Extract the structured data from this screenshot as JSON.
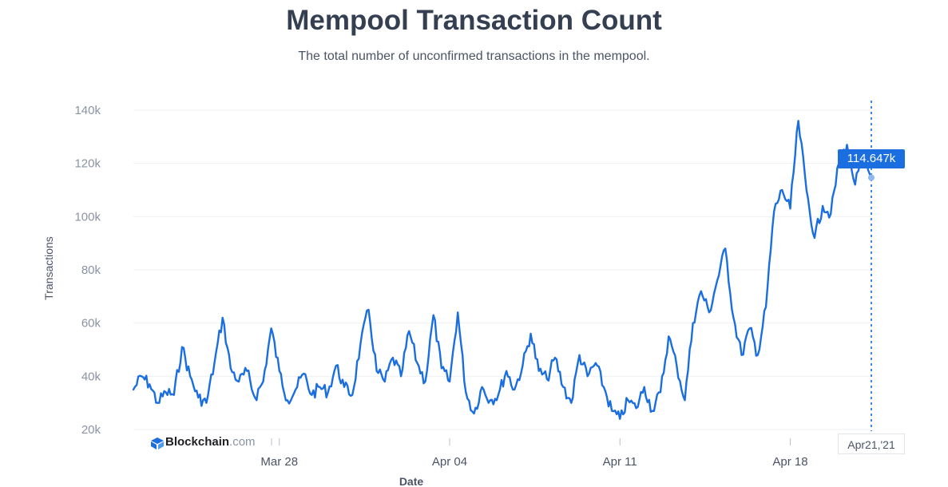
{
  "title": "Mempool Transaction Count",
  "subtitle": "The total number of unconfirmed transactions in the mempool.",
  "brand": {
    "name_bold": "Blockchain",
    "name_suffix": ".com"
  },
  "tooltip": {
    "value": "114.647k",
    "date": "Apr21,'21"
  },
  "colors": {
    "line": "#1a6ee0",
    "grid": "#eef0f3",
    "text": "#353f52"
  },
  "icons": [
    "blockchain-logo-icon"
  ],
  "chart_data": {
    "type": "line",
    "title": "Mempool Transaction Count",
    "xlabel": "Date",
    "ylabel": "Transactions",
    "x_start": "2021-03-22",
    "x_end": "2021-04-21",
    "x_ticks": [
      {
        "label": "Mar 28",
        "date": "2021-03-28"
      },
      {
        "label": "Apr 04",
        "date": "2021-04-04"
      },
      {
        "label": "Apr 11",
        "date": "2021-04-11"
      },
      {
        "label": "Apr 18",
        "date": "2021-04-18"
      }
    ],
    "ylim": [
      20000,
      140000
    ],
    "y_ticks": [
      {
        "value": 20000,
        "label": "20k"
      },
      {
        "value": 40000,
        "label": "40k"
      },
      {
        "value": 60000,
        "label": "60k"
      },
      {
        "value": 80000,
        "label": "80k"
      },
      {
        "value": 100000,
        "label": "100k"
      },
      {
        "value": 120000,
        "label": "120k"
      },
      {
        "value": 140000,
        "label": "140k"
      }
    ],
    "grid": true,
    "series": [
      {
        "points": [
          [
            "2021-03-22T00:00",
            35000
          ],
          [
            "2021-03-22T08:00",
            40000
          ],
          [
            "2021-03-22T16:00",
            37000
          ],
          [
            "2021-03-23T00:00",
            30000
          ],
          [
            "2021-03-23T08:00",
            34000
          ],
          [
            "2021-03-23T16:00",
            33000
          ],
          [
            "2021-03-24T00:00",
            51000
          ],
          [
            "2021-03-24T08:00",
            40000
          ],
          [
            "2021-03-24T16:00",
            32000
          ],
          [
            "2021-03-25T00:00",
            30000
          ],
          [
            "2021-03-25T08:00",
            45000
          ],
          [
            "2021-03-25T16:00",
            62000
          ],
          [
            "2021-03-26T00:00",
            43000
          ],
          [
            "2021-03-26T08:00",
            38000
          ],
          [
            "2021-03-26T16:00",
            42000
          ],
          [
            "2021-03-27T00:00",
            32000
          ],
          [
            "2021-03-27T08:00",
            38000
          ],
          [
            "2021-03-27T16:00",
            58000
          ],
          [
            "2021-03-28T00:00",
            42000
          ],
          [
            "2021-03-28T08:00",
            31000
          ],
          [
            "2021-03-28T16:00",
            35000
          ],
          [
            "2021-03-29T00:00",
            41000
          ],
          [
            "2021-03-29T08:00",
            33000
          ],
          [
            "2021-03-29T16:00",
            36000
          ],
          [
            "2021-03-30T00:00",
            34000
          ],
          [
            "2021-03-30T08:00",
            44000
          ],
          [
            "2021-03-30T16:00",
            36000
          ],
          [
            "2021-03-31T00:00",
            33000
          ],
          [
            "2021-03-31T08:00",
            52000
          ],
          [
            "2021-03-31T16:00",
            65000
          ],
          [
            "2021-04-01T00:00",
            42000
          ],
          [
            "2021-04-01T08:00",
            38000
          ],
          [
            "2021-04-01T16:00",
            47000
          ],
          [
            "2021-04-02T00:00",
            40000
          ],
          [
            "2021-04-02T08:00",
            57000
          ],
          [
            "2021-04-02T16:00",
            45000
          ],
          [
            "2021-04-03T00:00",
            38000
          ],
          [
            "2021-04-03T08:00",
            63000
          ],
          [
            "2021-04-03T16:00",
            43000
          ],
          [
            "2021-04-04T00:00",
            38000
          ],
          [
            "2021-04-04T08:00",
            64000
          ],
          [
            "2021-04-04T16:00",
            34000
          ],
          [
            "2021-04-05T00:00",
            26000
          ],
          [
            "2021-04-05T08:00",
            36000
          ],
          [
            "2021-04-05T16:00",
            31000
          ],
          [
            "2021-04-06T00:00",
            33000
          ],
          [
            "2021-04-06T08:00",
            42000
          ],
          [
            "2021-04-06T16:00",
            35000
          ],
          [
            "2021-04-07T00:00",
            44000
          ],
          [
            "2021-04-07T08:00",
            56000
          ],
          [
            "2021-04-07T16:00",
            42000
          ],
          [
            "2021-04-08T00:00",
            39000
          ],
          [
            "2021-04-08T08:00",
            47000
          ],
          [
            "2021-04-08T16:00",
            36000
          ],
          [
            "2021-04-09T00:00",
            30000
          ],
          [
            "2021-04-09T08:00",
            48000
          ],
          [
            "2021-04-09T16:00",
            40000
          ],
          [
            "2021-04-10T00:00",
            45000
          ],
          [
            "2021-04-10T08:00",
            36000
          ],
          [
            "2021-04-10T16:00",
            27000
          ],
          [
            "2021-04-11T00:00",
            24000
          ],
          [
            "2021-04-11T08:00",
            31000
          ],
          [
            "2021-04-11T16:00",
            28000
          ],
          [
            "2021-04-12T00:00",
            36000
          ],
          [
            "2021-04-12T08:00",
            27000
          ],
          [
            "2021-04-12T16:00",
            34000
          ],
          [
            "2021-04-13T00:00",
            55000
          ],
          [
            "2021-04-13T08:00",
            44000
          ],
          [
            "2021-04-13T16:00",
            31000
          ],
          [
            "2021-04-14T00:00",
            60000
          ],
          [
            "2021-04-14T08:00",
            72000
          ],
          [
            "2021-04-14T16:00",
            64000
          ],
          [
            "2021-04-15T00:00",
            76000
          ],
          [
            "2021-04-15T08:00",
            88000
          ],
          [
            "2021-04-15T16:00",
            62000
          ],
          [
            "2021-04-16T00:00",
            48000
          ],
          [
            "2021-04-16T08:00",
            58000
          ],
          [
            "2021-04-16T16:00",
            48000
          ],
          [
            "2021-04-17T00:00",
            66000
          ],
          [
            "2021-04-17T08:00",
            102000
          ],
          [
            "2021-04-17T16:00",
            110000
          ],
          [
            "2021-04-18T00:00",
            103000
          ],
          [
            "2021-04-18T08:00",
            136000
          ],
          [
            "2021-04-18T16:00",
            110000
          ],
          [
            "2021-04-19T00:00",
            92000
          ],
          [
            "2021-04-19T08:00",
            104000
          ],
          [
            "2021-04-19T16:00",
            101000
          ],
          [
            "2021-04-20T00:00",
            120000
          ],
          [
            "2021-04-20T08:00",
            127000
          ],
          [
            "2021-04-20T16:00",
            112000
          ],
          [
            "2021-04-21T00:00",
            122000
          ],
          [
            "2021-04-21T08:00",
            114647
          ]
        ]
      }
    ]
  }
}
